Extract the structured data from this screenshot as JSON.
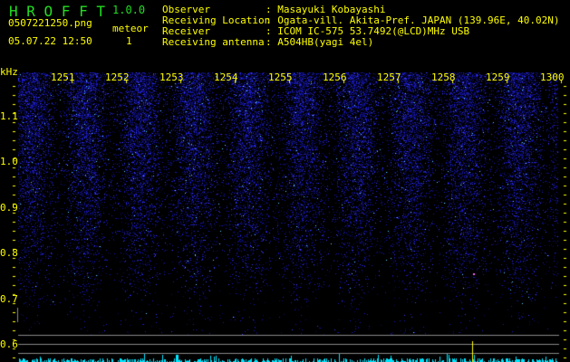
{
  "app": {
    "name": "H R O F F T",
    "version": "1.0.0"
  },
  "file": {
    "name": "0507221250.png",
    "datetime": "05.07.22 12:50"
  },
  "meteor": {
    "label": "meteor",
    "count": "1"
  },
  "info": {
    "labels": [
      "Observer",
      "Receiving Location",
      "Receiver",
      "Receiving antenna"
    ],
    "values": [
      ": Masayuki Kobayashi",
      ": Ogata-vill. Akita-Pref. JAPAN (139.96E, 40.02N)",
      ": ICOM IC-575 53.7492(@LCD)MHz USB",
      ": A504HB(yagi 4el)"
    ]
  },
  "spectrogram": {
    "y_unit": "kHz",
    "y_ticks": [
      "1.1",
      "1.0",
      "0.9",
      "0.8",
      "0.7",
      "0.6"
    ],
    "time_ticks": [
      "1251",
      "1252",
      "1253",
      "1254",
      "1255",
      "1256",
      "1257",
      "1258",
      "1259",
      "1300"
    ],
    "colors": {
      "background": "#000000",
      "noise": "#2020ff",
      "text": "#ffff00",
      "title": "#22dd22",
      "level": "#00e5ff",
      "grid": "#888888"
    }
  }
}
